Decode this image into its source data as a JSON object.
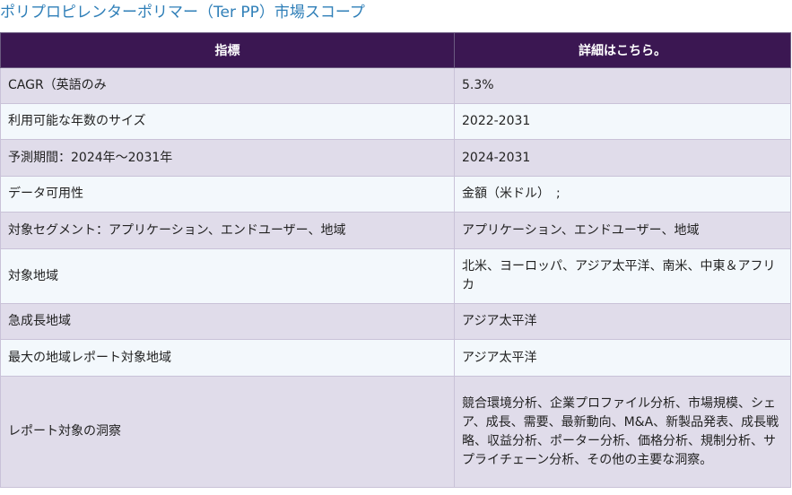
{
  "title": "ポリプロピレンターポリマー（Ter PP）市場スコープ",
  "table": {
    "headers": [
      "指標",
      "詳細はこちら。"
    ],
    "rows": [
      [
        "CAGR（英語のみ",
        "5.3%"
      ],
      [
        "利用可能な年数のサイズ",
        "2022-2031"
      ],
      [
        "予測期間：2024年～2031年",
        "2024-2031"
      ],
      [
        "データ可用性",
        "金額（米ドル）　;"
      ],
      [
        "対象セグメント：アプリケーション、エンドユーザー、地域",
        "アプリケーション、エンドユーザー、地域"
      ],
      [
        "対象地域",
        "北米、ヨーロッパ、アジア太平洋、南米、中東＆アフリカ"
      ],
      [
        "急成長地域",
        "アジア太平洋"
      ],
      [
        "最大の地域レポート対象地域",
        "アジア太平洋"
      ],
      [
        "レポート対象の洞察",
        "競合環境分析、企業プロファイル分析、市場規模、シェア、成長、需要、最新動向、M&A、新製品発表、成長戦略、収益分析、ポーター分析、価格分析、規制分析、サプライチェーン分析、その他の主要な洞察。"
      ]
    ]
  },
  "colors": {
    "title": "#2f7fb8",
    "header_bg": "#3b1752",
    "row_odd": "#e0dcea",
    "row_even": "#f3f8fc"
  }
}
